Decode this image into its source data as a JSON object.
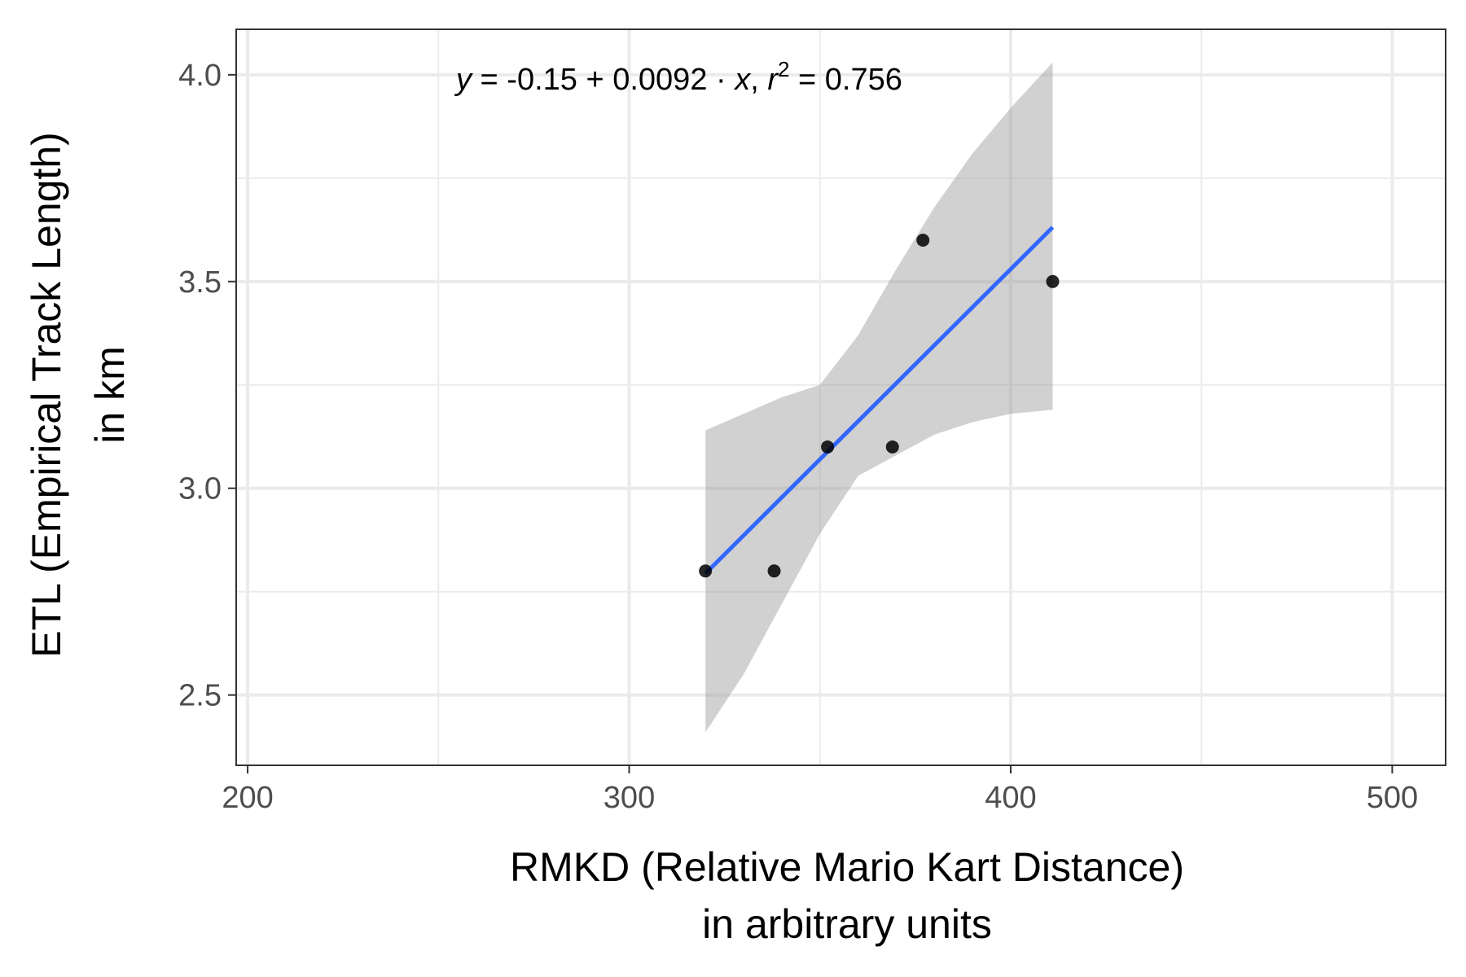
{
  "chart_data": {
    "type": "scatter",
    "xlabel_lines": [
      "RMKD (Relative Mario Kart Distance)",
      "in arbitrary units"
    ],
    "ylabel_lines": [
      "ETL (Empirical Track Length)",
      "in km"
    ],
    "xlim": [
      197,
      514
    ],
    "ylim": [
      2.33,
      4.11
    ],
    "x_ticks": [
      200,
      300,
      400,
      500
    ],
    "x_tick_labels": [
      "200",
      "300",
      "400",
      "500"
    ],
    "x_minor_grid": [
      250,
      350,
      450
    ],
    "y_ticks": [
      2.5,
      3.0,
      3.5,
      4.0
    ],
    "y_tick_labels": [
      "2.5",
      "3.0",
      "3.5",
      "4.0"
    ],
    "y_minor_grid": [
      2.75,
      3.25,
      3.75
    ],
    "grid": true,
    "points": [
      {
        "x": 320,
        "y": 2.8
      },
      {
        "x": 338,
        "y": 2.8
      },
      {
        "x": 352,
        "y": 3.1
      },
      {
        "x": 369,
        "y": 3.1
      },
      {
        "x": 377,
        "y": 3.6
      },
      {
        "x": 411,
        "y": 3.5
      }
    ],
    "fit": {
      "intercept": -0.15,
      "slope": 0.0092,
      "x_range": [
        320,
        411
      ],
      "ci_band": [
        {
          "x": 320,
          "lower": 2.41,
          "upper": 3.14
        },
        {
          "x": 330,
          "lower": 2.55,
          "upper": 3.18
        },
        {
          "x": 340,
          "lower": 2.72,
          "upper": 3.22
        },
        {
          "x": 350,
          "lower": 2.89,
          "upper": 3.25
        },
        {
          "x": 360,
          "lower": 3.03,
          "upper": 3.37
        },
        {
          "x": 370,
          "lower": 3.08,
          "upper": 3.53
        },
        {
          "x": 380,
          "lower": 3.13,
          "upper": 3.68
        },
        {
          "x": 390,
          "lower": 3.16,
          "upper": 3.81
        },
        {
          "x": 400,
          "lower": 3.18,
          "upper": 3.92
        },
        {
          "x": 411,
          "lower": 3.19,
          "upper": 4.03
        }
      ]
    },
    "annotation": {
      "y_sym": "y",
      "eq_mid": " = -0.15 + 0.0092 · ",
      "x_sym": "x",
      "sep": ",  ",
      "r_sym": "r",
      "r_exp": "2",
      "r_val": " = 0.756"
    },
    "colors": {
      "points": "#000000",
      "fit_line": "#3366FF",
      "ci_band": "#999999",
      "grid": "#ebebeb",
      "panel_border": "#333333",
      "tick_label": "#4d4d4d"
    }
  }
}
